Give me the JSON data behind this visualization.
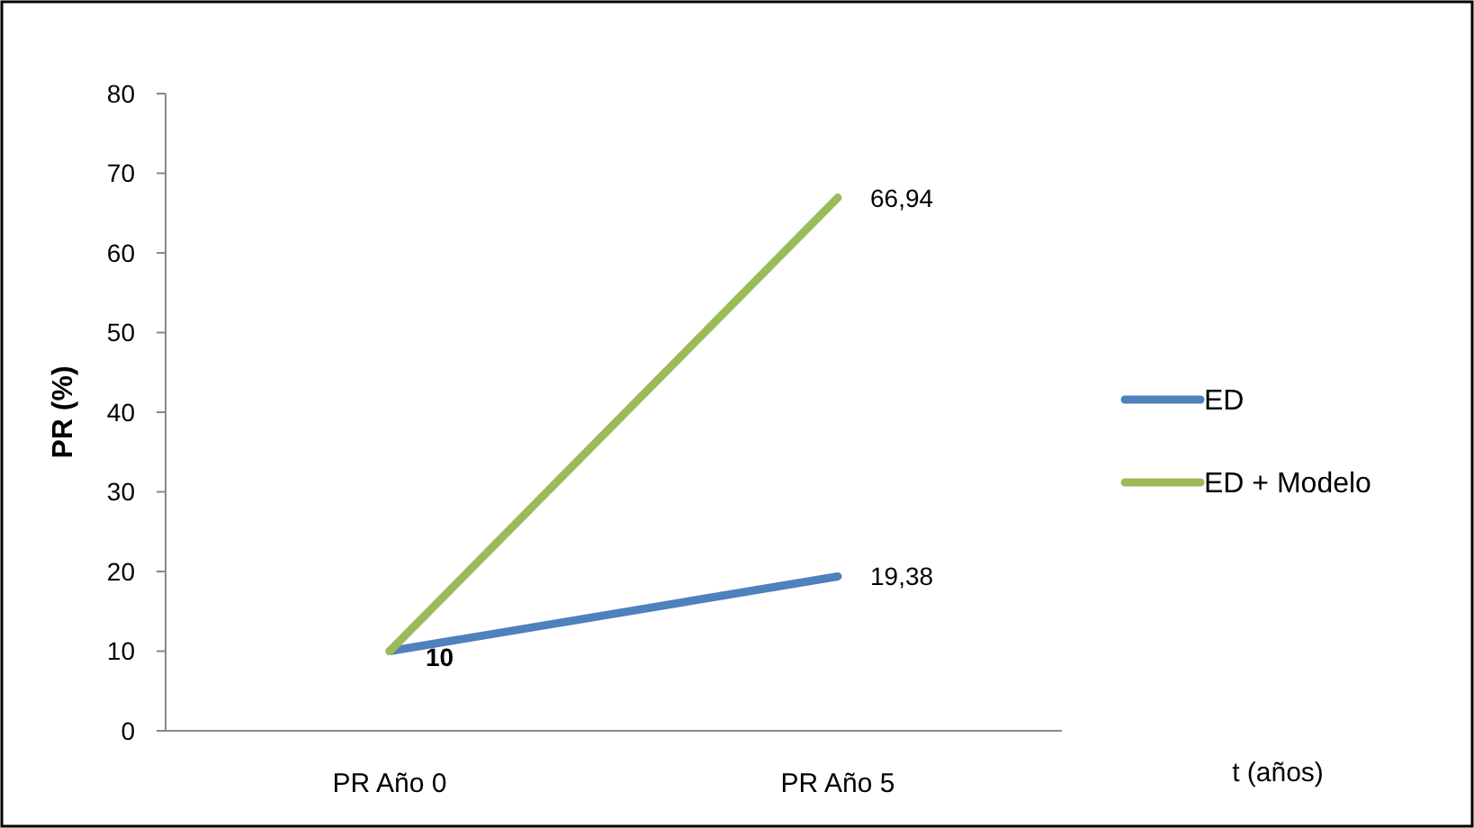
{
  "chart_data": {
    "type": "line",
    "ylabel": "PR (%)",
    "annotations": [
      "t (años)"
    ],
    "categories": [
      "PR Año 0",
      "PR Año 5"
    ],
    "series": [
      {
        "name": "ED",
        "color": "#4f81bd",
        "values": [
          10,
          19.38
        ],
        "value_labels": [
          "10",
          "19,38"
        ]
      },
      {
        "name": "ED + Modelo",
        "color": "#9bbb59",
        "values": [
          10,
          66.94
        ],
        "value_labels": [
          null,
          "66,94"
        ]
      }
    ],
    "ylim": [
      0,
      80
    ],
    "yticks": [
      0,
      10,
      20,
      30,
      40,
      50,
      60,
      70,
      80
    ],
    "grid": false,
    "legend": "right",
    "marker": "none",
    "line_style": "solid"
  }
}
